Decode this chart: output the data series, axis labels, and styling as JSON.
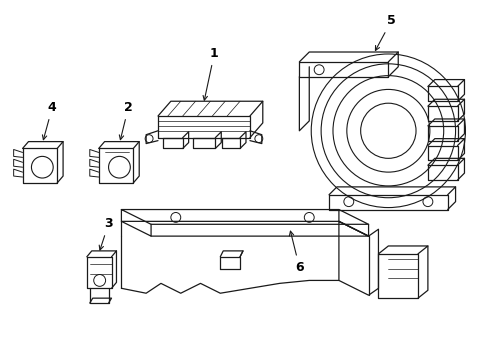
{
  "background_color": "#ffffff",
  "line_color": "#1a1a1a",
  "line_width": 0.9,
  "label_fontsize": 9,
  "figure_width": 4.89,
  "figure_height": 3.6,
  "dpi": 100
}
